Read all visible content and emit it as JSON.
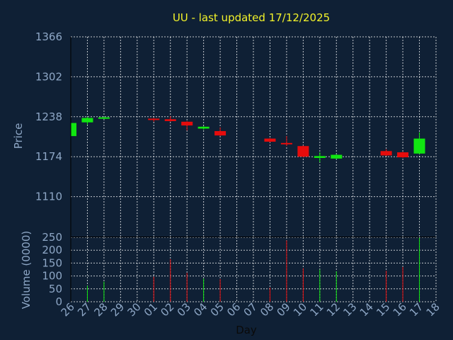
{
  "chart_data": {
    "type": "candlestick",
    "title": "UU - last updated 17/12/2025",
    "xlabel": "Day",
    "ylabel_price": "Price",
    "ylabel_volume": "Volume (0000)",
    "x_ticks": [
      "26",
      "27",
      "28",
      "29",
      "30",
      "01",
      "02",
      "03",
      "04",
      "05",
      "06",
      "07",
      "08",
      "09",
      "10",
      "11",
      "12",
      "13",
      "14",
      "15",
      "16",
      "17",
      "18"
    ],
    "price_ylim": [
      1046,
      1366
    ],
    "price_ticks": [
      1110,
      1174,
      1238,
      1302,
      1366
    ],
    "volume_ylim": [
      0,
      250
    ],
    "volume_ticks": [
      0,
      50,
      100,
      150,
      200,
      250
    ],
    "grid": true,
    "colors": {
      "up": "#11e611",
      "down": "#e60c0c",
      "grid": "#ffffff",
      "background": "#0f2035",
      "axis_text": "#8ea7c6",
      "title": "#f2f22a"
    },
    "candles": [
      {
        "day": 0,
        "open": 1207,
        "close": 1228,
        "high": 1229,
        "low": 1206,
        "volume": 0
      },
      {
        "day": 1,
        "open": 1229,
        "close": 1236,
        "high": 1238,
        "low": 1225,
        "volume": 62
      },
      {
        "day": 2,
        "open": 1235,
        "close": 1237,
        "high": 1238,
        "low": 1234,
        "volume": 78
      },
      {
        "day": 5,
        "open": 1235,
        "close": 1234,
        "high": 1236,
        "low": 1230,
        "volume": 97
      },
      {
        "day": 6,
        "open": 1234,
        "close": 1231,
        "high": 1239,
        "low": 1230,
        "volume": 165
      },
      {
        "day": 7,
        "open": 1230,
        "close": 1224,
        "high": 1231,
        "low": 1216,
        "volume": 112
      },
      {
        "day": 8,
        "open": 1219,
        "close": 1222,
        "high": 1223,
        "low": 1217,
        "volume": 90
      },
      {
        "day": 9,
        "open": 1215,
        "close": 1208,
        "high": 1221,
        "low": 1207,
        "volume": 88
      },
      {
        "day": 12,
        "open": 1203,
        "close": 1198,
        "high": 1204,
        "low": 1197,
        "volume": 55
      },
      {
        "day": 13,
        "open": 1196,
        "close": 1195,
        "high": 1207,
        "low": 1191,
        "volume": 238
      },
      {
        "day": 14,
        "open": 1191,
        "close": 1174,
        "high": 1192,
        "low": 1173,
        "volume": 130
      },
      {
        "day": 15,
        "open": 1172,
        "close": 1175,
        "high": 1181,
        "low": 1165,
        "volume": 125
      },
      {
        "day": 16,
        "open": 1171,
        "close": 1177,
        "high": 1178,
        "low": 1170,
        "volume": 118
      },
      {
        "day": 19,
        "open": 1183,
        "close": 1176,
        "high": 1186,
        "low": 1175,
        "volume": 120
      },
      {
        "day": 20,
        "open": 1181,
        "close": 1173,
        "high": 1182,
        "low": 1172,
        "volume": 135
      },
      {
        "day": 21,
        "open": 1179,
        "close": 1203,
        "high": 1213,
        "low": 1178,
        "volume": 248
      }
    ]
  }
}
